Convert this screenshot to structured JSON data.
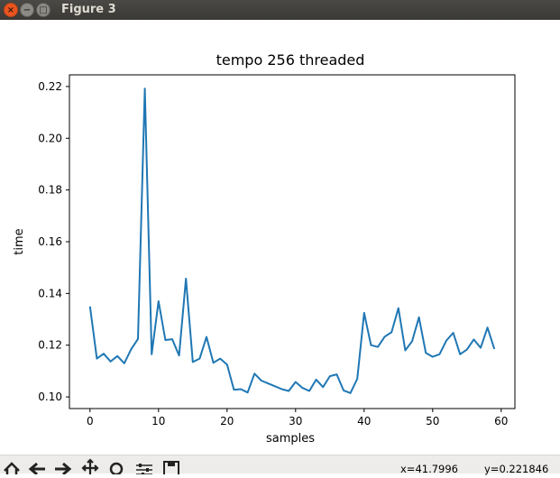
{
  "window": {
    "title": "Figure 3"
  },
  "toolbar": {
    "tools": [
      "home-icon",
      "back-arrow-icon",
      "forward-arrow-icon",
      "pan-icon",
      "zoom-icon",
      "subplots-icon",
      "save-icon"
    ],
    "x_readout": "x=41.7996",
    "y_readout": "y=0.221846"
  },
  "chart_data": {
    "type": "line",
    "title": "tempo 256 threaded",
    "xlabel": "samples",
    "ylabel": "time",
    "xlim": [
      -3,
      62
    ],
    "ylim": [
      0.0955,
      0.2245
    ],
    "xticks": [
      0,
      10,
      20,
      30,
      40,
      50,
      60
    ],
    "yticks": [
      0.1,
      0.12,
      0.14,
      0.16,
      0.18,
      0.2,
      0.22
    ],
    "ytick_labels": [
      "0.10",
      "0.12",
      "0.14",
      "0.16",
      "0.18",
      "0.20",
      "0.22"
    ],
    "grid": false,
    "color": "#1f77b4",
    "series": [
      {
        "x": [
          0,
          1,
          2,
          3,
          4,
          5,
          6,
          7,
          8,
          9,
          10,
          11,
          12,
          13,
          14,
          15,
          16,
          17,
          18,
          19,
          20,
          21,
          22,
          23,
          24,
          25,
          26,
          27,
          28,
          29,
          30,
          31,
          32,
          33,
          34,
          35,
          36,
          37,
          38,
          39,
          40,
          41,
          42,
          43,
          44,
          45,
          46,
          47,
          48,
          49,
          50,
          51,
          52,
          53,
          54,
          55,
          56,
          57,
          58,
          59
        ],
        "values": [
          0.135,
          0.1148,
          0.1167,
          0.1137,
          0.1158,
          0.113,
          0.1184,
          0.1224,
          0.2192,
          0.1165,
          0.137,
          0.122,
          0.1223,
          0.116,
          0.1457,
          0.1135,
          0.1148,
          0.1232,
          0.1132,
          0.1148,
          0.1125,
          0.1028,
          0.103,
          0.1017,
          0.109,
          0.1063,
          0.1052,
          0.1041,
          0.103,
          0.1023,
          0.1058,
          0.1035,
          0.1023,
          0.1067,
          0.1038,
          0.108,
          0.1087,
          0.1025,
          0.1015,
          0.107,
          0.1325,
          0.12,
          0.1193,
          0.1233,
          0.125,
          0.1343,
          0.118,
          0.1215,
          0.1308,
          0.117,
          0.1155,
          0.1165,
          0.1218,
          0.1248,
          0.1165,
          0.1183,
          0.1222,
          0.119,
          0.1268,
          0.1185
        ]
      }
    ]
  }
}
